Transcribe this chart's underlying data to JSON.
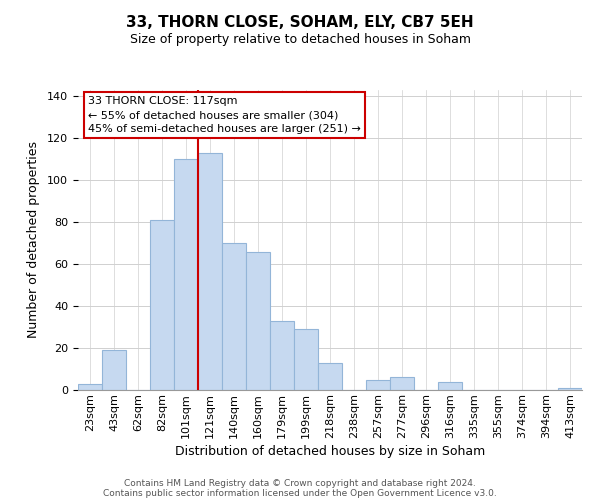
{
  "title1": "33, THORN CLOSE, SOHAM, ELY, CB7 5EH",
  "title2": "Size of property relative to detached houses in Soham",
  "xlabel": "Distribution of detached houses by size in Soham",
  "ylabel": "Number of detached properties",
  "bar_labels": [
    "23sqm",
    "43sqm",
    "62sqm",
    "82sqm",
    "101sqm",
    "121sqm",
    "140sqm",
    "160sqm",
    "179sqm",
    "199sqm",
    "218sqm",
    "238sqm",
    "257sqm",
    "277sqm",
    "296sqm",
    "316sqm",
    "335sqm",
    "355sqm",
    "374sqm",
    "394sqm",
    "413sqm"
  ],
  "bar_values": [
    3,
    19,
    0,
    81,
    110,
    113,
    70,
    66,
    33,
    29,
    13,
    0,
    5,
    6,
    0,
    4,
    0,
    0,
    0,
    0,
    1
  ],
  "bar_color": "#c6d9f0",
  "bar_edge_color": "#93b5d8",
  "vline_color": "#cc0000",
  "vline_index": 5,
  "ylim": [
    0,
    143
  ],
  "yticks": [
    0,
    20,
    40,
    60,
    80,
    100,
    120,
    140
  ],
  "annotation_line1": "33 THORN CLOSE: 117sqm",
  "annotation_line2": "← 55% of detached houses are smaller (304)",
  "annotation_line3": "45% of semi-detached houses are larger (251) →",
  "footer1": "Contains HM Land Registry data © Crown copyright and database right 2024.",
  "footer2": "Contains public sector information licensed under the Open Government Licence v3.0.",
  "title1_fontsize": 11,
  "title2_fontsize": 9,
  "xlabel_fontsize": 9,
  "ylabel_fontsize": 9,
  "tick_fontsize": 8,
  "footer_fontsize": 6.5,
  "ann_fontsize": 8
}
